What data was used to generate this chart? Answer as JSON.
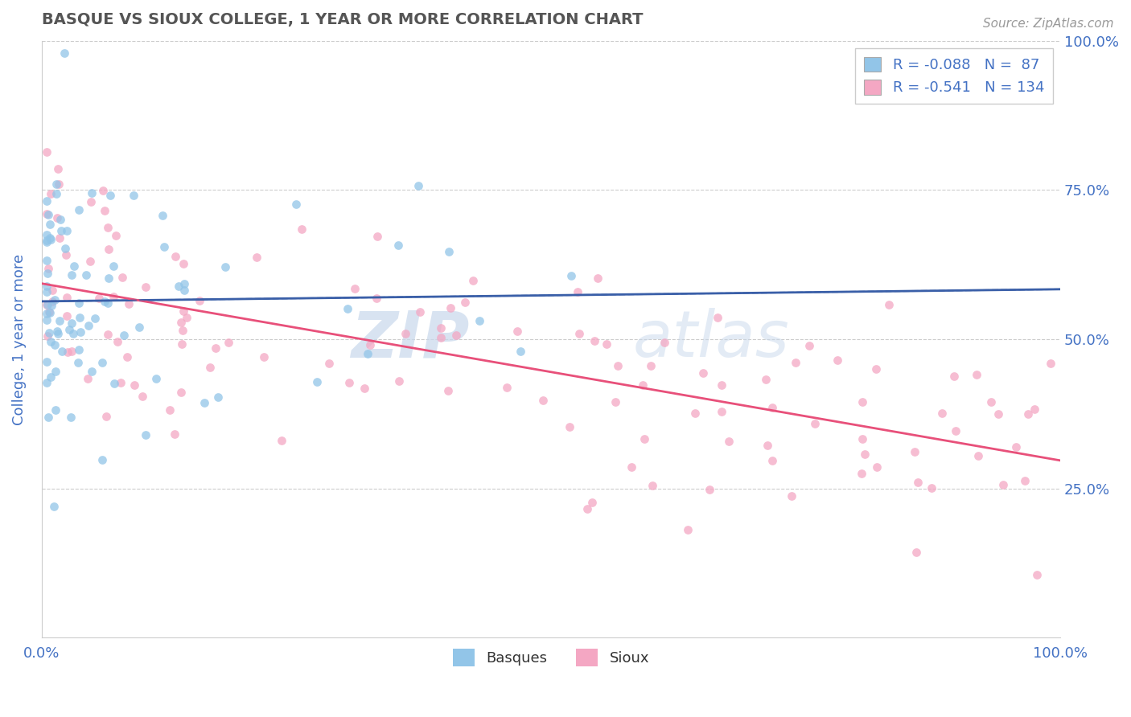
{
  "title": "BASQUE VS SIOUX COLLEGE, 1 YEAR OR MORE CORRELATION CHART",
  "source_text": "Source: ZipAtlas.com",
  "ylabel": "College, 1 year or more",
  "xlim": [
    0.0,
    1.0
  ],
  "ylim": [
    0.0,
    1.0
  ],
  "x_tick_positions": [
    0.0,
    1.0
  ],
  "x_tick_labels": [
    "0.0%",
    "100.0%"
  ],
  "right_y_tick_positions": [
    1.0,
    0.75,
    0.5,
    0.25,
    0.0
  ],
  "right_y_tick_labels": [
    "100.0%",
    "75.0%",
    "50.0%",
    "25.0%",
    ""
  ],
  "basque_color": "#92C5E8",
  "sioux_color": "#F4A7C3",
  "basque_line_color": "#3A5FA8",
  "sioux_line_color": "#E8507A",
  "R_basque": -0.088,
  "N_basque": 87,
  "R_sioux": -0.541,
  "N_sioux": 134,
  "legend_label_basque": "Basques",
  "legend_label_sioux": "Sioux",
  "watermark_zip": "ZIP",
  "watermark_atlas": "atlas",
  "background_color": "#FFFFFF",
  "grid_color": "#CCCCCC",
  "title_color": "#555555",
  "axis_label_color": "#4472C4",
  "title_fontsize": 14,
  "tick_fontsize": 13
}
